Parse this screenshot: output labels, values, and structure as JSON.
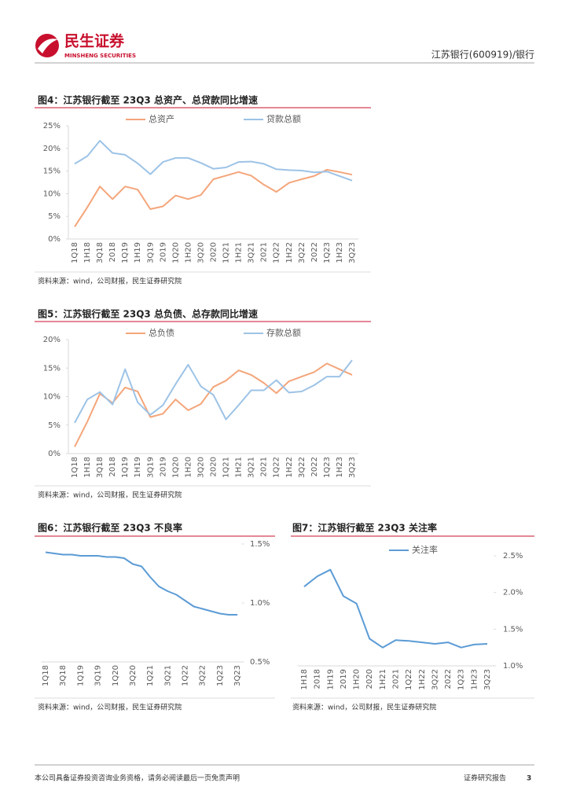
{
  "header": {
    "brand": "民生证券",
    "brand_en": "MINSHENG SECURITIES",
    "right": "江苏银行(600919)/银行"
  },
  "footer": {
    "disclaimer": "本公司具备证券投资咨询业务资格，请务必阅读最后一页免责声明",
    "type": "证券研究报告",
    "page": "3"
  },
  "chart_data": [
    {
      "type": "line",
      "title": "图4：江苏银行截至 23Q3 总资产、总贷款同比增速",
      "source": "资料来源：wind，公司财报，民生证券研究院",
      "categories": [
        "1Q18",
        "1H18",
        "3Q18",
        "2018",
        "1Q19",
        "1H19",
        "3Q19",
        "2019",
        "1Q20",
        "1H20",
        "3Q20",
        "2020",
        "1Q21",
        "1H21",
        "3Q21",
        "2021",
        "1Q22",
        "1H22",
        "3Q22",
        "2022",
        "1Q23",
        "1H23",
        "3Q23"
      ],
      "series": [
        {
          "name": "总资产",
          "color": "#f4a57a",
          "values": [
            2.7,
            7,
            11.6,
            8.8,
            11.6,
            10.9,
            6.6,
            7.2,
            9.6,
            8.8,
            9.7,
            13.2,
            14,
            14.8,
            14,
            12,
            10.4,
            12.4,
            13.2,
            13.9,
            15.3,
            14.8,
            14.2
          ]
        },
        {
          "name": "贷款总额",
          "color": "#9dc3e6",
          "values": [
            16.6,
            18.3,
            21.7,
            19,
            18.6,
            16.7,
            14.3,
            17,
            17.9,
            17.9,
            16.8,
            15.5,
            15.8,
            17,
            17.1,
            16.6,
            15.4,
            15.2,
            15.1,
            14.7,
            14.9,
            13.9,
            12.9
          ]
        }
      ],
      "ylim": [
        0,
        25
      ],
      "yticks": [
        {
          "value": 0,
          "label": "0%"
        },
        {
          "value": 5,
          "label": "5%"
        },
        {
          "value": 10,
          "label": "10%"
        },
        {
          "value": 15,
          "label": "15%"
        },
        {
          "value": 20,
          "label": "20%"
        },
        {
          "value": 25,
          "label": "25%"
        }
      ],
      "y_axis": "left",
      "legend": "top"
    },
    {
      "type": "line",
      "title": "图5：江苏银行截至 23Q3 总负债、总存款同比增速",
      "source": "资料来源：wind，公司财报，民生证券研究院",
      "categories": [
        "1Q18",
        "1H18",
        "3Q18",
        "2018",
        "1Q19",
        "1H19",
        "3Q19",
        "2019",
        "1Q20",
        "1H20",
        "3Q20",
        "2020",
        "1Q21",
        "1H21",
        "3Q21",
        "2021",
        "1Q22",
        "1H22",
        "3Q22",
        "2022",
        "1Q23",
        "1H23",
        "3Q23"
      ],
      "series": [
        {
          "name": "总负债",
          "color": "#f4a57a",
          "values": [
            1.2,
            5.6,
            10.5,
            8.9,
            11.6,
            10.9,
            6.4,
            7,
            9.5,
            7.6,
            8.7,
            11.7,
            12.8,
            14.6,
            13.8,
            12.4,
            10.6,
            12.7,
            13.5,
            14.3,
            15.8,
            14.8,
            13.8
          ]
        },
        {
          "name": "存款总额",
          "color": "#9dc3e6",
          "values": [
            5.4,
            9.5,
            10.8,
            8.6,
            14.8,
            9,
            6.8,
            8.5,
            12.2,
            15.6,
            11.8,
            10.3,
            6,
            8.5,
            11.1,
            11.1,
            12.9,
            10.7,
            10.9,
            12,
            13.5,
            13.5,
            16.4
          ]
        }
      ],
      "ylim": [
        0,
        20
      ],
      "yticks": [
        {
          "value": 0,
          "label": "0%"
        },
        {
          "value": 5,
          "label": "5%"
        },
        {
          "value": 10,
          "label": "10%"
        },
        {
          "value": 15,
          "label": "15%"
        },
        {
          "value": 20,
          "label": "20%"
        }
      ],
      "y_axis": "left",
      "legend": "top"
    },
    {
      "type": "line",
      "title": "图6：江苏银行截至 23Q3 不良率",
      "source": "资料来源：wind，公司财报，民生证券研究院",
      "categories": [
        "1Q18",
        null,
        "3Q18",
        null,
        "1Q19",
        null,
        "3Q19",
        null,
        "1Q20",
        null,
        "3Q20",
        null,
        "1Q21",
        null,
        "3Q21",
        null,
        "1Q22",
        null,
        "3Q22",
        null,
        "1Q23",
        null,
        "3Q23"
      ],
      "series": [
        {
          "color": "#5b9bd5",
          "values": [
            1.43,
            1.42,
            1.41,
            1.41,
            1.4,
            1.4,
            1.4,
            1.39,
            1.39,
            1.38,
            1.33,
            1.31,
            1.22,
            1.14,
            1.1,
            1.07,
            1.02,
            0.97,
            0.95,
            0.93,
            0.91,
            0.9,
            0.9
          ]
        }
      ],
      "ylim": [
        0.5,
        1.5
      ],
      "yticks": [
        {
          "value": 0.5,
          "label": "0.5%"
        },
        {
          "value": 1,
          "label": "1.0%"
        },
        {
          "value": 1.5,
          "label": "1.5%"
        }
      ],
      "y_axis": "right"
    },
    {
      "type": "line",
      "title": "图7：江苏银行截至 23Q3 关注率",
      "source": "资料来源：wind，公司财报，民生证券研究院",
      "categories": [
        "1H18",
        "2018",
        "1H19",
        "2019",
        "1H20",
        "2020",
        "1H21",
        "2021",
        "1Q22",
        "1H22",
        "3Q22",
        "2022",
        "1Q23",
        "1H23",
        "3Q23"
      ],
      "series": [
        {
          "name": "关注率",
          "color": "#5b9bd5",
          "values": [
            2.08,
            2.22,
            2.31,
            1.95,
            1.85,
            1.37,
            1.25,
            1.35,
            1.34,
            1.32,
            1.3,
            1.32,
            1.25,
            1.29,
            1.3
          ]
        }
      ],
      "ylim": [
        1,
        2.5
      ],
      "yticks": [
        {
          "value": 1,
          "label": "1.0%"
        },
        {
          "value": 1.5,
          "label": "1.5%"
        },
        {
          "value": 2,
          "label": "2.0%"
        },
        {
          "value": 2.5,
          "label": "2.5%"
        }
      ],
      "y_axis": "right",
      "legend": "top"
    }
  ]
}
